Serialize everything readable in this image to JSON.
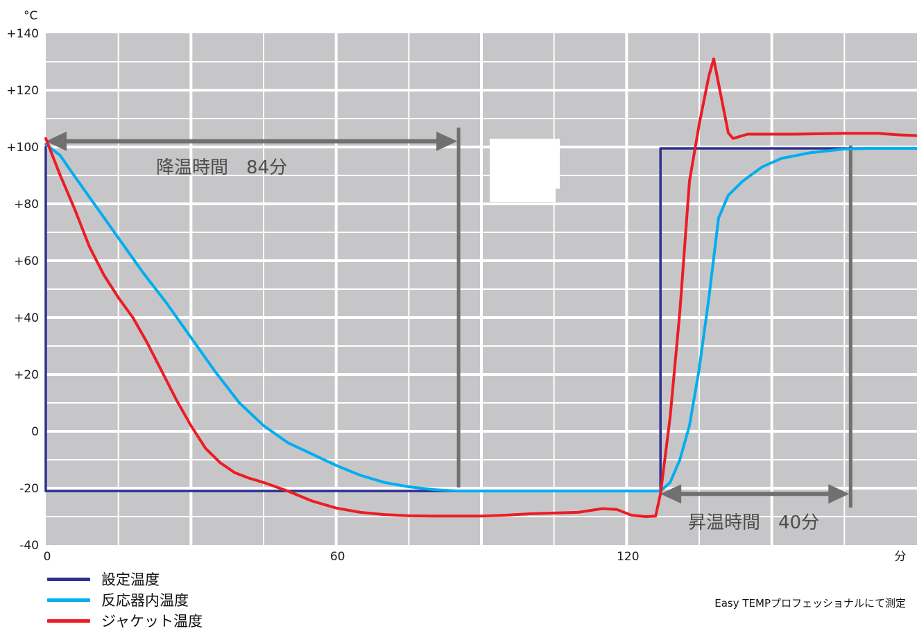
{
  "chart_data": {
    "type": "line",
    "xlabel": "",
    "ylabel": "",
    "x_unit": "分",
    "y_unit": "°C",
    "xlim": [
      0,
      180
    ],
    "ylim": [
      -40,
      140
    ],
    "x_ticks": [
      {
        "value": 0,
        "label": "0"
      },
      {
        "value": 60,
        "label": "60"
      },
      {
        "value": 120,
        "label": "120"
      }
    ],
    "y_ticks": [
      {
        "value": 140,
        "label": "+140"
      },
      {
        "value": 120,
        "label": "+120"
      },
      {
        "value": 100,
        "label": "+100"
      },
      {
        "value": 80,
        "label": "+80"
      },
      {
        "value": 60,
        "label": "+60"
      },
      {
        "value": 40,
        "label": "+40"
      },
      {
        "value": 20,
        "label": "+20"
      },
      {
        "value": 0,
        "label": "0"
      },
      {
        "value": -20,
        "label": "-20"
      },
      {
        "value": -40,
        "label": "-40"
      }
    ],
    "grid": true,
    "series": [
      {
        "name": "設定温度",
        "color": "#2e3192",
        "points": [
          [
            0,
            -21
          ],
          [
            0,
            100
          ],
          [
            0,
            -21
          ],
          [
            127,
            -21
          ],
          [
            127,
            99.5
          ],
          [
            180,
            99.5
          ]
        ]
      },
      {
        "name": "反応器内温度",
        "color": "#00aeef",
        "points": [
          [
            0,
            101
          ],
          [
            3,
            97
          ],
          [
            5,
            92
          ],
          [
            10,
            80
          ],
          [
            15,
            68
          ],
          [
            20,
            56
          ],
          [
            25,
            45
          ],
          [
            30,
            33
          ],
          [
            35,
            21
          ],
          [
            40,
            10
          ],
          [
            45,
            2
          ],
          [
            50,
            -4
          ],
          [
            55,
            -8
          ],
          [
            60,
            -12
          ],
          [
            65,
            -15.5
          ],
          [
            70,
            -18
          ],
          [
            75,
            -19.5
          ],
          [
            80,
            -20.5
          ],
          [
            85,
            -21
          ],
          [
            90,
            -21
          ],
          [
            100,
            -21
          ],
          [
            110,
            -21
          ],
          [
            120,
            -21
          ],
          [
            127,
            -21
          ],
          [
            129,
            -18
          ],
          [
            131,
            -10
          ],
          [
            133,
            2
          ],
          [
            135,
            22
          ],
          [
            137,
            47
          ],
          [
            139,
            75
          ],
          [
            141,
            83
          ],
          [
            144,
            88
          ],
          [
            148,
            93
          ],
          [
            152,
            96
          ],
          [
            158,
            98
          ],
          [
            165,
            99.3
          ],
          [
            170,
            99.5
          ],
          [
            180,
            99.5
          ]
        ]
      },
      {
        "name": "ジャケット温度",
        "color": "#ed1c24",
        "points": [
          [
            0,
            103
          ],
          [
            3,
            90
          ],
          [
            6,
            78
          ],
          [
            9,
            65
          ],
          [
            12,
            55
          ],
          [
            15,
            47
          ],
          [
            18,
            40
          ],
          [
            21,
            31
          ],
          [
            24,
            21
          ],
          [
            27,
            11
          ],
          [
            30,
            2
          ],
          [
            33,
            -6
          ],
          [
            36,
            -11
          ],
          [
            39,
            -14.5
          ],
          [
            42,
            -16.5
          ],
          [
            45,
            -18
          ],
          [
            50,
            -21
          ],
          [
            55,
            -24.5
          ],
          [
            60,
            -27
          ],
          [
            65,
            -28.5
          ],
          [
            70,
            -29.3
          ],
          [
            75,
            -29.7
          ],
          [
            80,
            -29.8
          ],
          [
            90,
            -29.8
          ],
          [
            95,
            -29.5
          ],
          [
            100,
            -29
          ],
          [
            110,
            -28.5
          ],
          [
            115,
            -27.2
          ],
          [
            118,
            -27.5
          ],
          [
            121,
            -29.5
          ],
          [
            124,
            -30
          ],
          [
            126,
            -29.8
          ],
          [
            127,
            -22
          ],
          [
            129,
            5
          ],
          [
            131,
            42
          ],
          [
            133,
            88
          ],
          [
            135,
            108
          ],
          [
            137,
            125
          ],
          [
            138,
            131
          ],
          [
            139.5,
            118
          ],
          [
            141,
            105
          ],
          [
            142,
            103
          ],
          [
            145,
            104.5
          ],
          [
            155,
            104.5
          ],
          [
            165,
            104.8
          ],
          [
            172,
            104.8
          ],
          [
            176,
            104.3
          ],
          [
            180,
            104
          ]
        ]
      }
    ],
    "annotations": [
      {
        "text": "降温時間　84分",
        "from_x": 0,
        "to_x": 85,
        "y": 102
      },
      {
        "text": "昇温時間　40分",
        "from_x": 127,
        "to_x": 166,
        "y": -22
      }
    ]
  },
  "legend": [
    {
      "label": "設定温度",
      "color": "#2e3192"
    },
    {
      "label": "反応器内温度",
      "color": "#00aeef"
    },
    {
      "label": "ジャケット温度",
      "color": "#ed1c24"
    }
  ],
  "footnote": "Easy TEMPプロフェッショナルにて測定"
}
